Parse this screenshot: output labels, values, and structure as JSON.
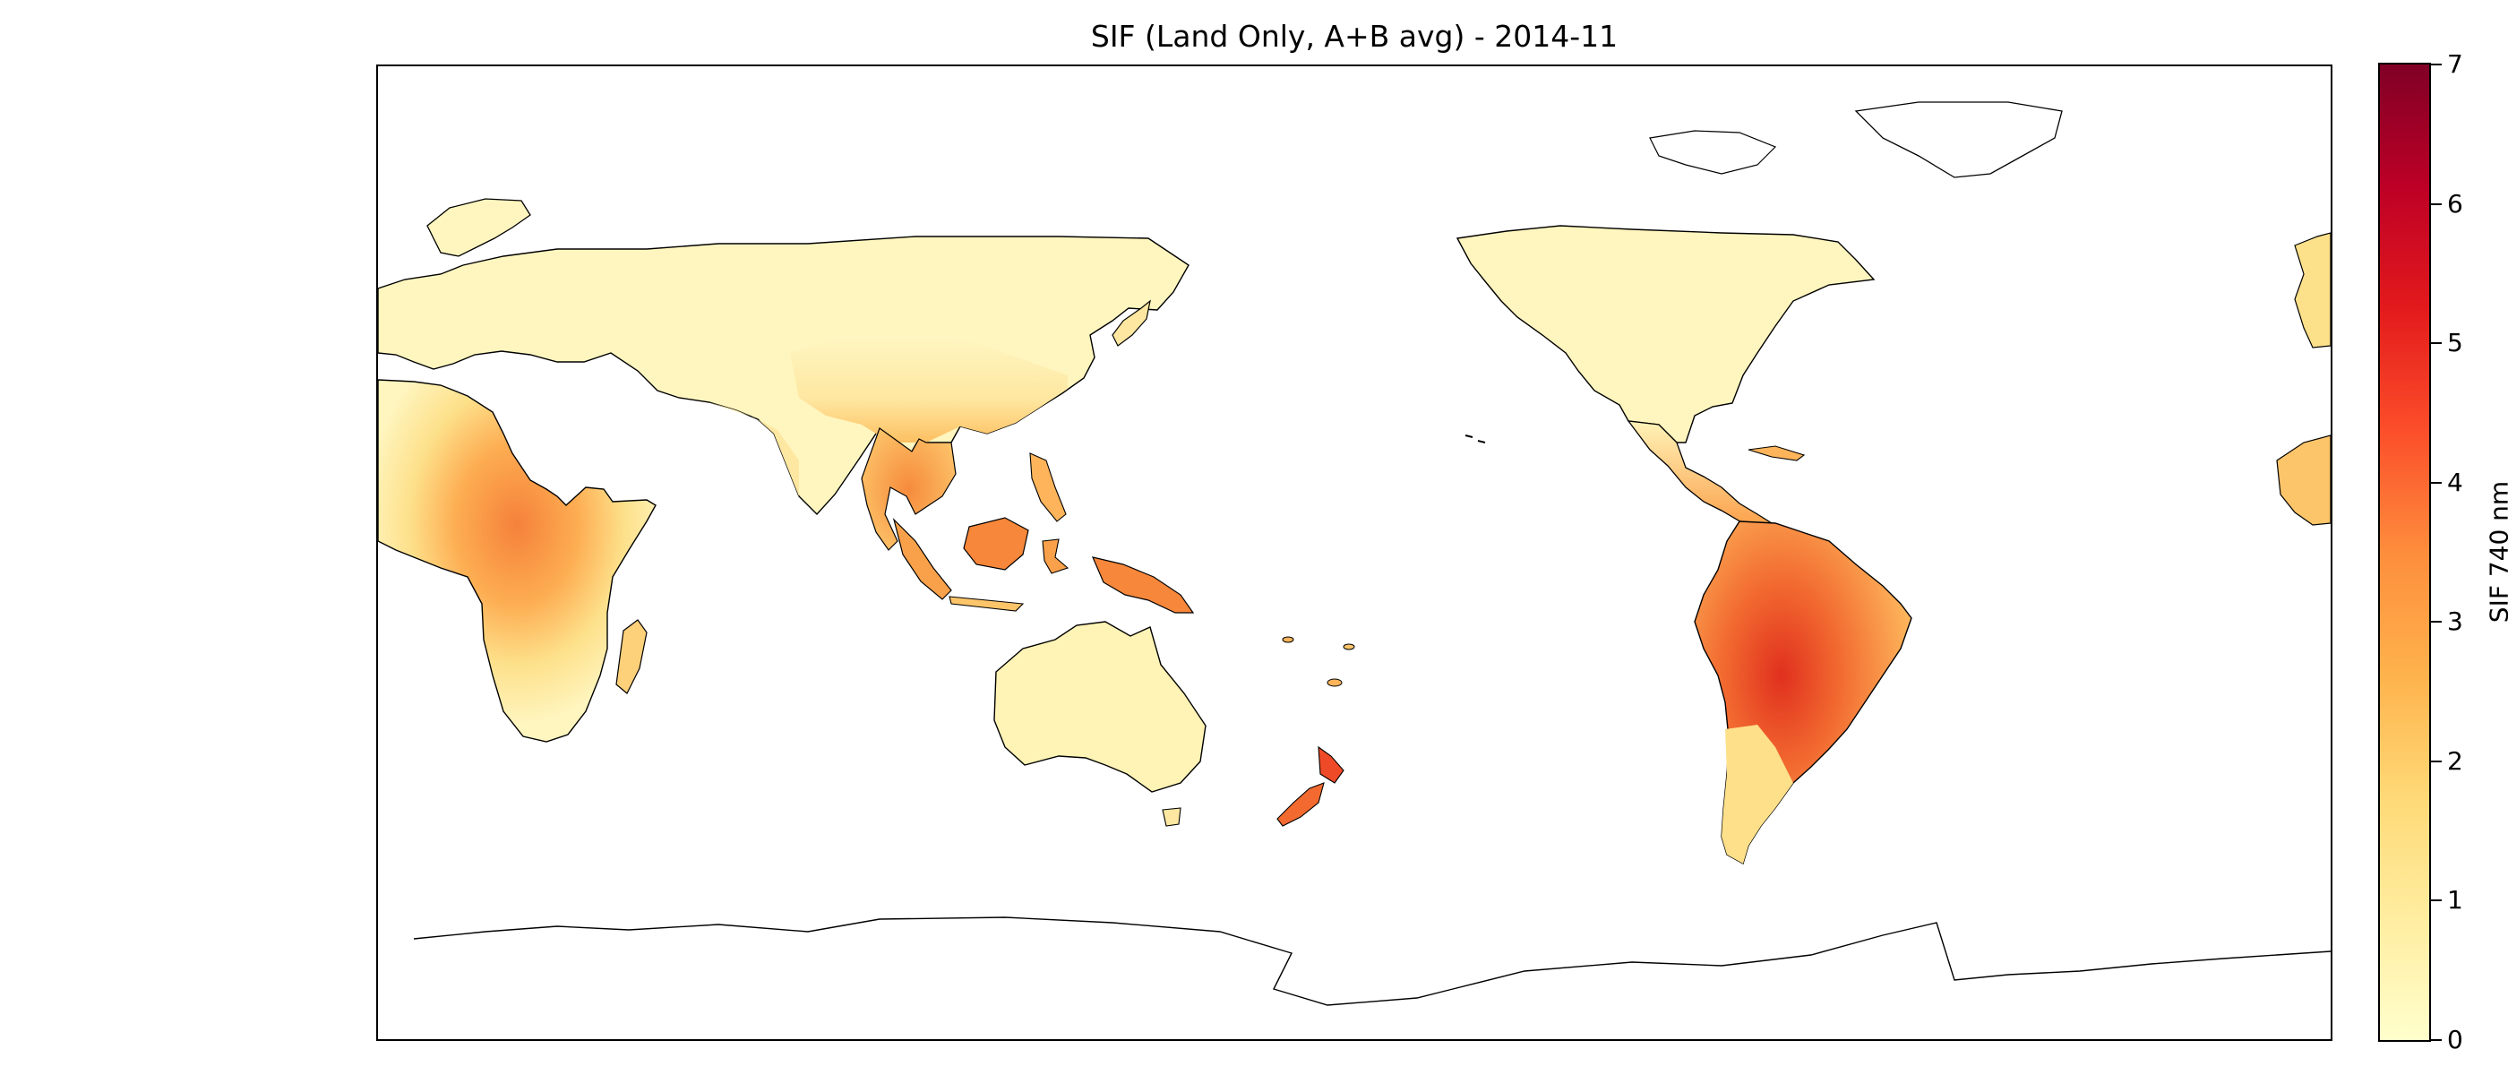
{
  "title": "SIF (Land Only, A+B avg) - 2014-11",
  "colorbar": {
    "label": "SIF 740 nm",
    "min": 0,
    "max": 7,
    "ticks": [
      "0",
      "1",
      "2",
      "3",
      "4",
      "5",
      "6",
      "7"
    ],
    "colormap": "YlOrRd",
    "colors": [
      "#ffffcc",
      "#ffeda0",
      "#fed976",
      "#feb24c",
      "#fd8d3c",
      "#fc4e2a",
      "#e31a1c",
      "#bd0026",
      "#800026"
    ]
  },
  "map": {
    "projection": "PlateCarree",
    "central_longitude": 180,
    "lon_range": [
      0,
      360
    ],
    "lat_range": [
      -90,
      90
    ],
    "coastlines": true,
    "no_data_color": "#ffffff"
  }
}
